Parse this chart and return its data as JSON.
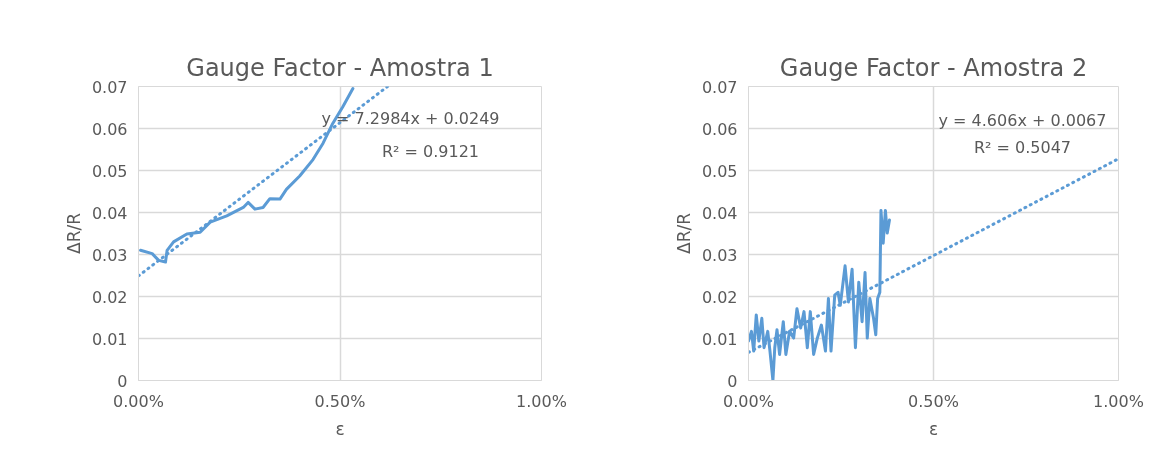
{
  "chart_data": [
    {
      "type": "line",
      "title": "Gauge Factor - Amostra 1",
      "xlabel": "ε",
      "ylabel": "ΔR/R",
      "xlim": [
        0,
        0.01
      ],
      "xticks": [
        {
          "value": 0,
          "label": "0.00%"
        },
        {
          "value": 0.005,
          "label": "0.50%"
        },
        {
          "value": 0.01,
          "label": "1.00%"
        }
      ],
      "ylim": [
        0,
        0.07
      ],
      "yticks": [
        0,
        0.01,
        0.02,
        0.03,
        0.04,
        0.05,
        0.06,
        0.07
      ],
      "grid": true,
      "series": [
        {
          "color": "#5b9bd5",
          "line_style": "solid",
          "x": [
            5e-05,
            0.00034,
            0.0005,
            0.00067,
            0.00071,
            0.00087,
            0.0012,
            0.00153,
            0.00178,
            0.00219,
            0.0026,
            0.00272,
            0.00289,
            0.00309,
            0.00326,
            0.00351,
            0.00367,
            0.004,
            0.00433,
            0.00458,
            0.00482,
            0.00507,
            0.00532
          ],
          "values": [
            0.031,
            0.0302,
            0.0286,
            0.0282,
            0.031,
            0.033,
            0.0349,
            0.0353,
            0.0377,
            0.0392,
            0.0412,
            0.0424,
            0.0408,
            0.0412,
            0.0433,
            0.0432,
            0.0455,
            0.0487,
            0.0526,
            0.0565,
            0.0612,
            0.0652,
            0.0695
          ]
        },
        {
          "color": "#5b9bd5",
          "line_style": "dotted",
          "x": [
            0,
            0.00618
          ],
          "values": [
            0.0249,
            0.07
          ]
        }
      ],
      "annotations": [
        "y = 7.2984x + 0.0249",
        "R² = 0.9121"
      ]
    },
    {
      "type": "line",
      "title": "Gauge Factor - Amostra 2",
      "xlabel": "ε",
      "ylabel": "ΔR/R",
      "xlim": [
        0,
        0.01
      ],
      "xticks": [
        {
          "value": 0,
          "label": "0.00%"
        },
        {
          "value": 0.005,
          "label": "0.50%"
        },
        {
          "value": 0.01,
          "label": "1.00%"
        }
      ],
      "ylim": [
        0,
        0.07
      ],
      "yticks": [
        0,
        0.01,
        0.02,
        0.03,
        0.04,
        0.05,
        0.06,
        0.07
      ],
      "grid": true,
      "series": [
        {
          "color": "#5b9bd5",
          "line_style": "solid",
          "x": [
            0.0,
            8e-05,
            0.00014,
            0.00021,
            0.00028,
            0.00036,
            0.00042,
            0.00052,
            0.00058,
            0.00066,
            0.00071,
            0.00077,
            0.00084,
            0.00094,
            0.00101,
            0.00111,
            0.00122,
            0.00131,
            0.00141,
            0.0015,
            0.00159,
            0.00167,
            0.00176,
            0.00186,
            0.00197,
            0.00208,
            0.00216,
            0.00223,
            0.00233,
            0.00242,
            0.00248,
            0.00261,
            0.0027,
            0.0028,
            0.00289,
            0.00298,
            0.00307,
            0.00315,
            0.00321,
            0.00328,
            0.00338,
            0.00344,
            0.00349,
            0.00355,
            0.00358,
            0.00364,
            0.0037,
            0.00375,
            0.00381
          ],
          "values": [
            0.0094,
            0.0117,
            0.007,
            0.0156,
            0.0094,
            0.0148,
            0.0078,
            0.0117,
            0.007,
            0.0,
            0.0078,
            0.0121,
            0.0062,
            0.014,
            0.0062,
            0.0117,
            0.0101,
            0.0171,
            0.0125,
            0.0164,
            0.0078,
            0.0164,
            0.0062,
            0.0101,
            0.0132,
            0.007,
            0.0195,
            0.007,
            0.0203,
            0.021,
            0.0179,
            0.0273,
            0.0187,
            0.0265,
            0.0078,
            0.0234,
            0.014,
            0.0257,
            0.0101,
            0.0195,
            0.0148,
            0.0109,
            0.0195,
            0.021,
            0.0405,
            0.0327,
            0.0405,
            0.0351,
            0.0382
          ]
        },
        {
          "color": "#5b9bd5",
          "line_style": "dotted",
          "x": [
            0,
            0.01
          ],
          "values": [
            0.0067,
            0.0528
          ]
        }
      ],
      "annotations": [
        "y = 4.606x + 0.0067",
        "R² = 0.5047"
      ]
    }
  ]
}
